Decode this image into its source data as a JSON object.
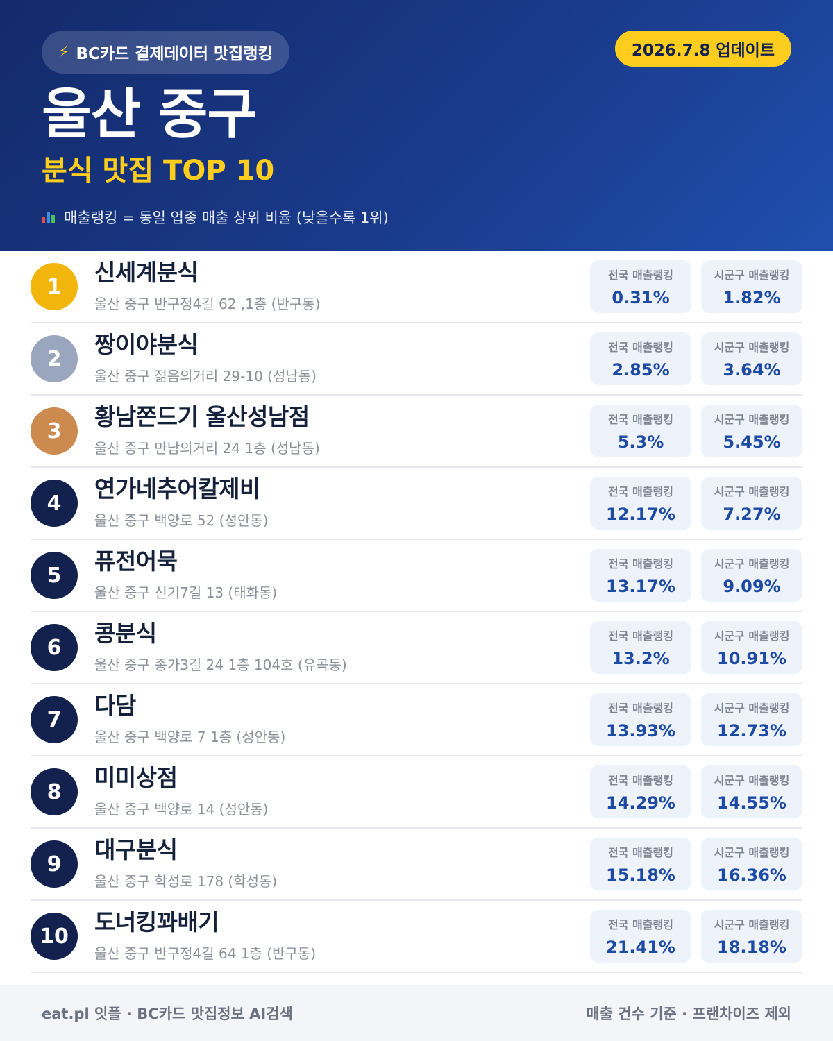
{
  "header": {
    "badge": "BC카드 결제데이터 맛집랭킹",
    "update": "2026.7.8 업데이트",
    "title": "울산 중구",
    "subtitle": "분식 맛집 TOP 10",
    "note": "매출랭킹 = 동일 업종 매출 상위 비율 (낮을수록 1위)"
  },
  "stat_labels": {
    "national": "전국 매출랭킹",
    "local": "시군구 매출랭킹"
  },
  "rank_colors": {
    "gold": "#f2b50c",
    "silver": "#9aa6bd",
    "bronze": "#cc8a4e",
    "default": "#13214f"
  },
  "rows": [
    {
      "rank": "1",
      "name": "신세계분식",
      "address": "울산 중구 반구정4길 62 ,1층 (반구동)",
      "national": "0.31%",
      "local": "1.82%"
    },
    {
      "rank": "2",
      "name": "짱이야분식",
      "address": "울산 중구 젊음의거리 29-10 (성남동)",
      "national": "2.85%",
      "local": "3.64%"
    },
    {
      "rank": "3",
      "name": "황남쫀드기 울산성남점",
      "address": "울산 중구 만남의거리 24 1층 (성남동)",
      "national": "5.3%",
      "local": "5.45%"
    },
    {
      "rank": "4",
      "name": "연가네추어칼제비",
      "address": "울산 중구 백양로 52 (성안동)",
      "national": "12.17%",
      "local": "7.27%"
    },
    {
      "rank": "5",
      "name": "퓨전어묵",
      "address": "울산 중구 신기7길 13 (태화동)",
      "national": "13.17%",
      "local": "9.09%"
    },
    {
      "rank": "6",
      "name": "콩분식",
      "address": "울산 중구 종가3길 24 1층 104호 (유곡동)",
      "national": "13.2%",
      "local": "10.91%"
    },
    {
      "rank": "7",
      "name": "다담",
      "address": "울산 중구 백양로 7 1층 (성안동)",
      "national": "13.93%",
      "local": "12.73%"
    },
    {
      "rank": "8",
      "name": "미미상점",
      "address": "울산 중구 백양로 14 (성안동)",
      "national": "14.29%",
      "local": "14.55%"
    },
    {
      "rank": "9",
      "name": "대구분식",
      "address": "울산 중구 학성로 178 (학성동)",
      "national": "15.18%",
      "local": "16.36%"
    },
    {
      "rank": "10",
      "name": "도너킹꽈배기",
      "address": "울산 중구 반구정4길 64 1층 (반구동)",
      "national": "21.41%",
      "local": "18.18%"
    }
  ],
  "footer": {
    "left": "eat.pl 잇플 · BC카드 맛집정보 AI검색",
    "right": "매출 건수 기준 · 프랜차이즈 제외"
  }
}
